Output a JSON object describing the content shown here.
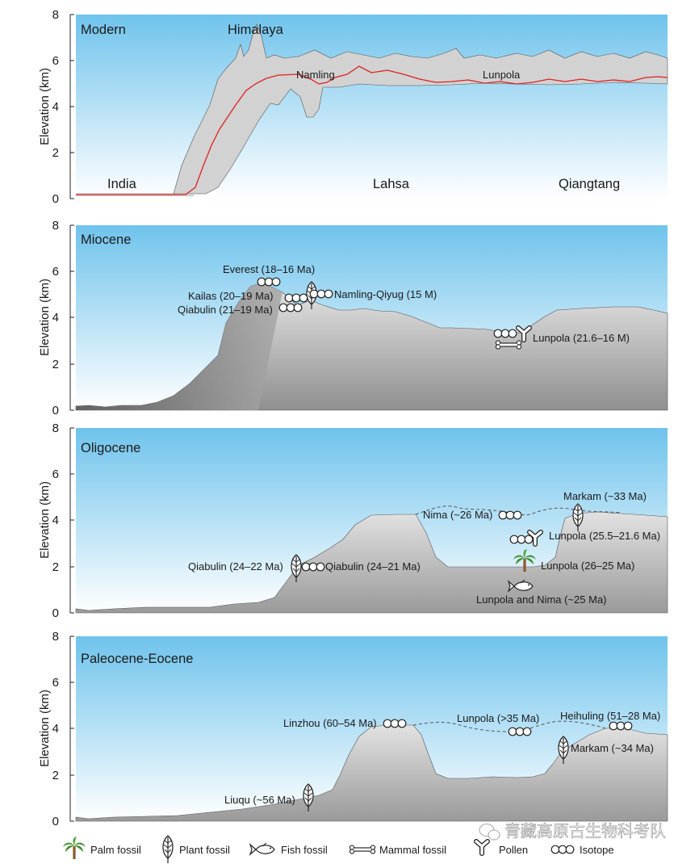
{
  "colors": {
    "sky_top": "#6fc3ec",
    "sky_bottom": "#ffffff",
    "terrain_dark": "#6e6e6e",
    "terrain_light": "#dedede",
    "mean_line": "#e02020",
    "band": "#d2d2d2"
  },
  "y_axis": {
    "label": "Elevation (km)",
    "ticks": [
      "0",
      "2",
      "4",
      "6",
      "8"
    ],
    "range": [
      0,
      8
    ]
  },
  "panels": [
    {
      "title": "Modern",
      "labels": [
        {
          "text": "Himalaya"
        },
        {
          "text": "India"
        },
        {
          "text": "Lahsa"
        },
        {
          "text": "Qiangtang"
        },
        {
          "text": "Namling"
        },
        {
          "text": "Lunpola"
        }
      ]
    },
    {
      "title": "Miocene",
      "labels": [
        {
          "text": "Everest (18–16 Ma)"
        },
        {
          "text": "Kailas (20–19 Ma)"
        },
        {
          "text": "Qiabulin (21–19 Ma)"
        },
        {
          "text": "Namling-Qiyug (15 M)"
        },
        {
          "text": "Lunpola (21.6–16 M)"
        }
      ]
    },
    {
      "title": "Oligocene",
      "labels": [
        {
          "text": "Markam (~33 Ma)"
        },
        {
          "text": "Nima (~26 Ma)"
        },
        {
          "text": "Lunpola (25.5–21.6 Ma)"
        },
        {
          "text": "Lunpola (26–25 Ma)"
        },
        {
          "text": "Qiabulin (24–22 Ma)"
        },
        {
          "text": "Qiabulin (24–21 Ma)"
        },
        {
          "text": "Lunpola and Nima (~25 Ma)"
        }
      ]
    },
    {
      "title": "Paleocene-Eocene",
      "labels": [
        {
          "text": "Linzhou (60–54 Ma)"
        },
        {
          "text": "Lunpola (>35 Ma)"
        },
        {
          "text": "Heihuling (51–28 Ma)"
        },
        {
          "text": "Markam (~34 Ma)"
        },
        {
          "text": "Liuqu (~56 Ma)"
        }
      ]
    }
  ],
  "legend": [
    {
      "icon": "palm-icon",
      "text": "Palm fossil"
    },
    {
      "icon": "leaf-icon",
      "text": "Plant fossil"
    },
    {
      "icon": "fish-icon",
      "text": "Fish fossil"
    },
    {
      "icon": "bone-icon",
      "text": "Mammal fossil"
    },
    {
      "icon": "pollen-icon",
      "text": "Pollen"
    },
    {
      "icon": "isotope-icon",
      "text": "Isotope"
    }
  ],
  "watermark": "青藏高原古生物科考队"
}
